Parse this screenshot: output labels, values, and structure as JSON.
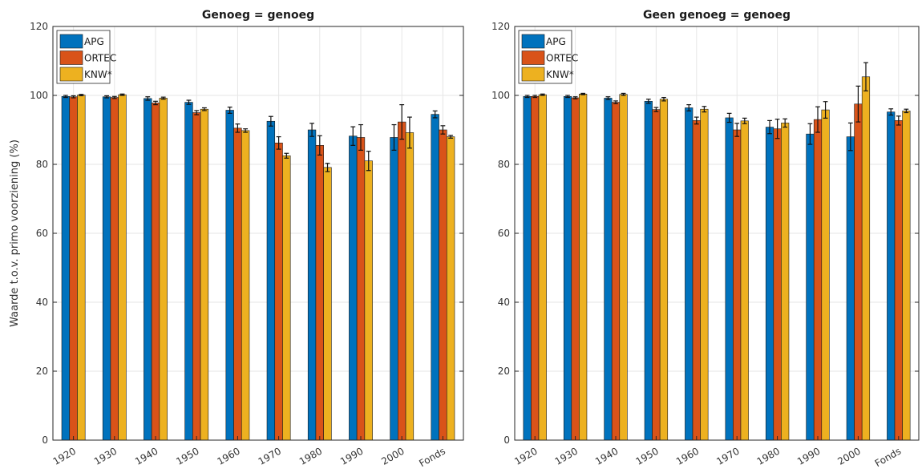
{
  "figure": {
    "ylabel": "Waarde t.o.v. primo voorziening (%)"
  },
  "series_meta": [
    {
      "name": "APG",
      "color": "#0072BD"
    },
    {
      "name": "ORTEC",
      "color": "#D95319"
    },
    {
      "name": "KNW*",
      "color": "#EDB120"
    }
  ],
  "chart_data": [
    {
      "type": "bar",
      "title": "Genoeg = genoeg",
      "xlabel": "",
      "ylabel": "Waarde t.o.v. primo voorziening (%)",
      "ylim": [
        0,
        120
      ],
      "yticks": [
        0,
        20,
        40,
        60,
        80,
        100,
        120
      ],
      "grid": true,
      "legend": "top-left",
      "categories": [
        "1920",
        "1930",
        "1940",
        "1950",
        "1960",
        "1970",
        "1980",
        "1990",
        "2000",
        "Fonds"
      ],
      "series": [
        {
          "name": "APG",
          "values": [
            99.7,
            99.6,
            99.1,
            98.0,
            95.7,
            92.5,
            90.0,
            88.2,
            87.8,
            94.5
          ],
          "err": [
            0.3,
            0.3,
            0.5,
            0.6,
            0.9,
            1.4,
            1.9,
            2.7,
            3.7,
            1.0
          ]
        },
        {
          "name": "ORTEC",
          "values": [
            99.6,
            99.4,
            97.8,
            95.0,
            90.5,
            86.2,
            85.5,
            87.8,
            92.3,
            90.0
          ],
          "err": [
            0.3,
            0.3,
            0.5,
            0.6,
            1.2,
            1.8,
            2.8,
            3.7,
            5.0,
            1.2
          ]
        },
        {
          "name": "KNW*",
          "values": [
            100.1,
            100.2,
            99.2,
            96.0,
            89.8,
            82.5,
            79.1,
            81.0,
            89.2,
            88.0
          ],
          "err": [
            0.2,
            0.2,
            0.3,
            0.4,
            0.5,
            0.7,
            1.2,
            2.8,
            4.5,
            0.4
          ]
        }
      ]
    },
    {
      "type": "bar",
      "title": "Geen genoeg = genoeg",
      "xlabel": "",
      "ylabel": "",
      "ylim": [
        0,
        120
      ],
      "yticks": [
        0,
        20,
        40,
        60,
        80,
        100,
        120
      ],
      "grid": true,
      "legend": "top-left",
      "categories": [
        "1920",
        "1930",
        "1940",
        "1950",
        "1960",
        "1970",
        "1980",
        "1990",
        "2000",
        "Fonds"
      ],
      "series": [
        {
          "name": "APG",
          "values": [
            99.7,
            99.7,
            99.2,
            98.3,
            96.4,
            93.5,
            90.8,
            88.8,
            88.0,
            95.2
          ],
          "err": [
            0.3,
            0.3,
            0.4,
            0.6,
            0.9,
            1.3,
            1.9,
            3.0,
            4.0,
            0.9
          ]
        },
        {
          "name": "ORTEC",
          "values": [
            99.7,
            99.3,
            98.0,
            95.9,
            92.7,
            90.0,
            90.3,
            93.0,
            97.5,
            92.7
          ],
          "err": [
            0.3,
            0.3,
            0.4,
            0.6,
            1.0,
            1.9,
            2.8,
            3.7,
            5.2,
            1.3
          ]
        },
        {
          "name": "KNW*",
          "values": [
            100.2,
            100.4,
            100.3,
            98.9,
            96.0,
            92.6,
            92.0,
            95.8,
            105.4,
            95.5
          ],
          "err": [
            0.2,
            0.2,
            0.3,
            0.5,
            0.8,
            0.8,
            1.2,
            2.4,
            4.1,
            0.5
          ]
        }
      ]
    }
  ]
}
